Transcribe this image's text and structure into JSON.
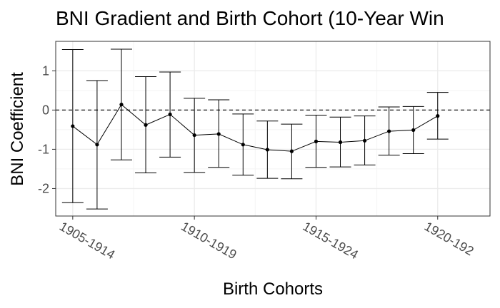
{
  "chart_data": {
    "type": "line",
    "title": "BNI Gradient and Birth Cohort (10-Year Win",
    "xlabel": "Birth Cohorts",
    "ylabel": "BNI Coefficient",
    "x_tick_labels": [
      "1905-1914",
      "1910-1919",
      "1915-1924",
      "1920-192"
    ],
    "y_tick_labels": [
      "-2",
      "-1",
      "0",
      "1"
    ],
    "y_ticks": [
      -2,
      -1,
      0,
      1
    ],
    "ylim": [
      -2.7,
      1.75
    ],
    "xlim": [
      1904.3,
      1922.15
    ],
    "x_ticks": [
      1905,
      1910,
      1915,
      1920
    ],
    "grid": true,
    "reference_line": {
      "y": 0,
      "style": "dashed"
    },
    "series": [
      {
        "x": [
          1905,
          1906,
          1907,
          1908,
          1909,
          1910,
          1911,
          1912,
          1913,
          1914,
          1915,
          1916,
          1917,
          1918,
          1919,
          1920
        ],
        "values": [
          -0.41,
          -0.88,
          0.14,
          -0.38,
          -0.11,
          -0.64,
          -0.61,
          -0.88,
          -1.01,
          -1.05,
          -0.8,
          -0.82,
          -0.78,
          -0.54,
          -0.51,
          -0.15
        ],
        "lower": [
          -2.36,
          -2.52,
          -1.27,
          -1.6,
          -1.2,
          -1.59,
          -1.46,
          -1.66,
          -1.74,
          -1.75,
          -1.46,
          -1.45,
          -1.4,
          -1.15,
          -1.11,
          -0.74
        ],
        "upper": [
          1.54,
          0.75,
          1.55,
          0.85,
          0.97,
          0.3,
          0.26,
          -0.1,
          -0.28,
          -0.36,
          -0.13,
          -0.18,
          -0.15,
          0.08,
          0.09,
          0.45
        ]
      }
    ]
  },
  "colors": {
    "line": "#000000",
    "panel_border": "#333333",
    "grid_major": "#ebebeb",
    "grid_minor": "#f4f4f4",
    "tick_label": "#4d4d4d"
  }
}
